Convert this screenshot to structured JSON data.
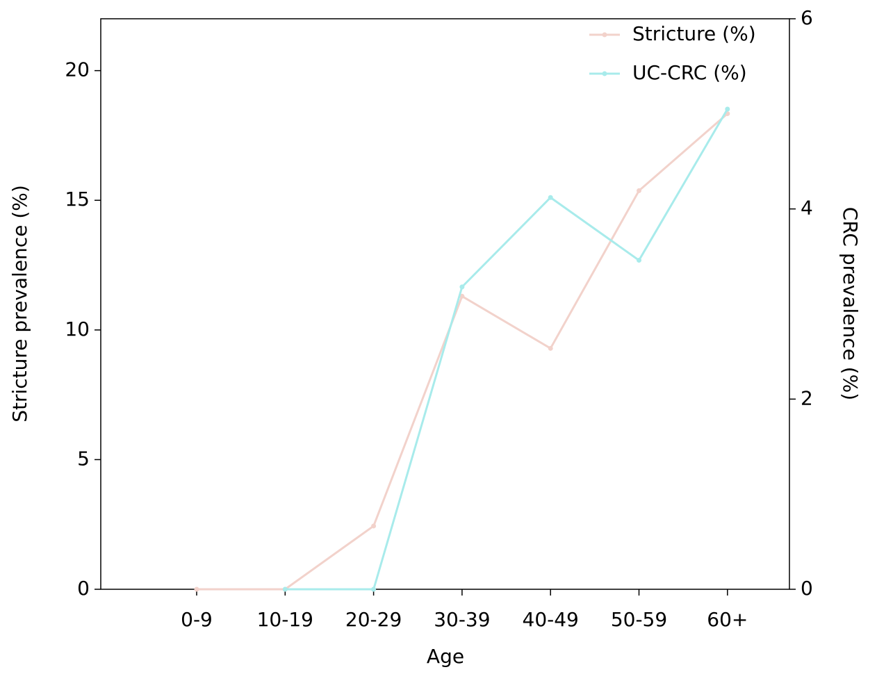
{
  "chart_data": {
    "type": "line",
    "xlabel": "Age",
    "ylabel": "Stricture prevalence (%)",
    "y2label": "CRC prevalence (%)",
    "categories": [
      "0-9",
      "10-19",
      "20-29",
      "30-39",
      "40-49",
      "50-59",
      "60+"
    ],
    "series": [
      {
        "name": "Stricture (%)",
        "color": "#f2d2cb",
        "values": [
          0,
          0,
          2.44,
          11.3,
          9.29,
          15.37,
          18.34
        ]
      },
      {
        "name": "UC-CRC (%)",
        "color": "#a8ebeb",
        "axis": "y2",
        "values": [
          null,
          0,
          0,
          3.18,
          4.12,
          3.46,
          5.05
        ]
      }
    ],
    "ylim": [
      0,
      22
    ],
    "yticks": [
      0,
      5,
      10,
      15,
      20
    ],
    "y2lim": [
      0,
      6
    ],
    "y2ticks": [
      0,
      2,
      4,
      6
    ],
    "grid": false,
    "legend": "upper right"
  }
}
